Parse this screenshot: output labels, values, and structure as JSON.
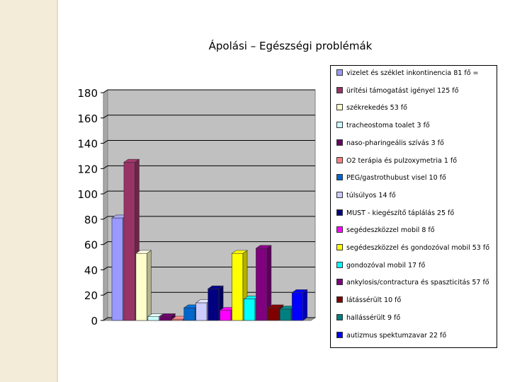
{
  "slide": {
    "title": "Ápolási – Egészségi problémák"
  },
  "chart_data": {
    "type": "bar",
    "title": "",
    "xlabel": "",
    "ylabel": "",
    "ylim": [
      0,
      180
    ],
    "yticks": [
      0,
      20,
      40,
      60,
      80,
      100,
      120,
      140,
      160,
      180
    ],
    "grid": true,
    "style": "3d-clustered-columns",
    "legend_position": "right",
    "series": [
      {
        "name": "vizelet és széklet inkontinencia 81 fő =",
        "value": 81,
        "color": "#9999ff"
      },
      {
        "name": "ürítési támogatást igényel 125 fő",
        "value": 125,
        "color": "#993366"
      },
      {
        "name": "székrekedés 53 fő",
        "value": 53,
        "color": "#ffffcc"
      },
      {
        "name": "tracheostoma toalet 3 fő",
        "value": 3,
        "color": "#ccffff"
      },
      {
        "name": "naso-pharingeális szívás 3 fő",
        "value": 3,
        "color": "#660066"
      },
      {
        "name": "O2 terápia és pulzoxymetria 1 fő",
        "value": 1,
        "color": "#ff8080"
      },
      {
        "name": "PEG/gastrothubust visel 10 fő",
        "value": 10,
        "color": "#0066cc"
      },
      {
        "name": "túlsúlyos 14 fő",
        "value": 14,
        "color": "#ccccff"
      },
      {
        "name": "MUST - kiegészítő táplálás 25 fő",
        "value": 25,
        "color": "#000080"
      },
      {
        "name": "segédeszközzel mobil 8 fő",
        "value": 8,
        "color": "#ff00ff"
      },
      {
        "name": "segédeszközzel és gondozóval mobil 53 fő",
        "value": 53,
        "color": "#ffff00"
      },
      {
        "name": "gondozóval mobil 17 fő",
        "value": 17,
        "color": "#00ffff"
      },
      {
        "name": "ankylosis/contractura és spaszticitás 57 fő",
        "value": 57,
        "color": "#800080"
      },
      {
        "name": "látássérült 10 fő",
        "value": 10,
        "color": "#800000"
      },
      {
        "name": "hallássérült 9 fő",
        "value": 9,
        "color": "#008080"
      },
      {
        "name": "autizmus spektumzavar 22 fő",
        "value": 22,
        "color": "#0000ff"
      }
    ]
  }
}
